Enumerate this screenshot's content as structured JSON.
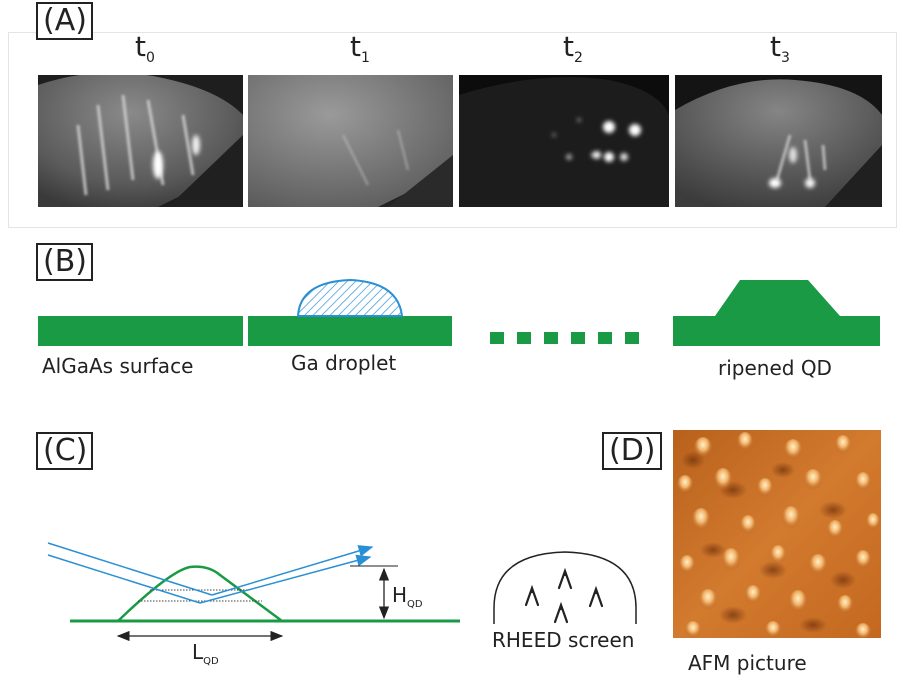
{
  "panels": {
    "a": {
      "label": "(A)"
    },
    "b": {
      "label": "(B)"
    },
    "c": {
      "label": "(C)"
    },
    "d": {
      "label": "(D)"
    }
  },
  "rheed_images": [
    {
      "label": "t",
      "index": "0"
    },
    {
      "label": "t",
      "index": "1"
    },
    {
      "label": "t",
      "index": "2"
    },
    {
      "label": "t",
      "index": "3"
    }
  ],
  "growth_steps": {
    "surface_caption": "AlGaAs surface",
    "droplet_caption": "Ga droplet",
    "qd_caption": "ripened QD"
  },
  "geometry_sketch": {
    "height_label": "H",
    "height_sub": "QD",
    "length_label": "L",
    "length_sub": "QD",
    "screen_caption": "RHEED screen"
  },
  "afm": {
    "caption": "AFM picture"
  },
  "colors": {
    "green": "#1a9a45",
    "blue": "#2a8fd4",
    "afm_orange": "#d27a2e"
  }
}
